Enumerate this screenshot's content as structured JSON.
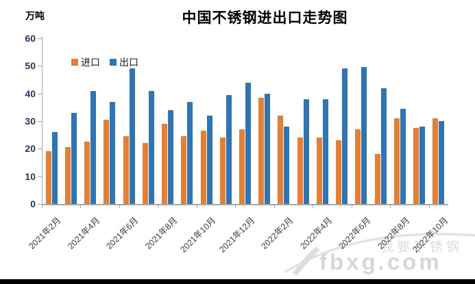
{
  "title": "中国不锈钢进出口走势图",
  "y_axis_unit": "万吨",
  "legend": {
    "import_label": "进口",
    "export_label": "出口"
  },
  "watermark": {
    "line1": "我要不锈钢",
    "line2": "fbxg.com"
  },
  "colors": {
    "import": "#E87E31",
    "export": "#2E75B6",
    "axis": "#A6A6A6",
    "y_tick_text": "#203864",
    "watermark": "#DCDCDC"
  },
  "chart_data": {
    "type": "bar",
    "title": "中国不锈钢进出口走势图",
    "ylabel": "万吨",
    "ylim": [
      0,
      60
    ],
    "y_ticks": [
      0,
      10,
      20,
      30,
      40,
      50,
      60
    ],
    "grid": false,
    "legend_position": "top-left-inside",
    "categories": [
      "2021年2月",
      "2021年3月",
      "2021年4月",
      "2021年5月",
      "2021年6月",
      "2021年7月",
      "2021年8月",
      "2021年9月",
      "2021年10月",
      "2021年11月",
      "2021年12月",
      "2022年1月",
      "2022年2月",
      "2022年3月",
      "2022年4月",
      "2022年5月",
      "2022年6月",
      "2022年7月",
      "2022年8月",
      "2022年9月",
      "2022年10月"
    ],
    "x_tick_labels": [
      "2021年2月",
      "2021年4月",
      "2021年6月",
      "2021年8月",
      "2021年10月",
      "2021年12月",
      "2022年2月",
      "2022年4月",
      "2022年6月",
      "2022年8月",
      "2022年10月"
    ],
    "x_tick_interval": 2,
    "series": [
      {
        "name": "进口",
        "color": "#E87E31",
        "values": [
          19,
          20.5,
          22.5,
          30.5,
          24.5,
          22,
          29,
          24.5,
          26.5,
          24,
          27,
          38.5,
          32,
          24,
          24,
          23,
          27,
          18,
          31,
          27.5,
          31
        ]
      },
      {
        "name": "出口",
        "color": "#2E75B6",
        "values": [
          26,
          33,
          41,
          37,
          49,
          41,
          34,
          37,
          32,
          39.5,
          44,
          40,
          28,
          38,
          38,
          49,
          49.5,
          42,
          34.5,
          28,
          30
        ]
      }
    ]
  }
}
